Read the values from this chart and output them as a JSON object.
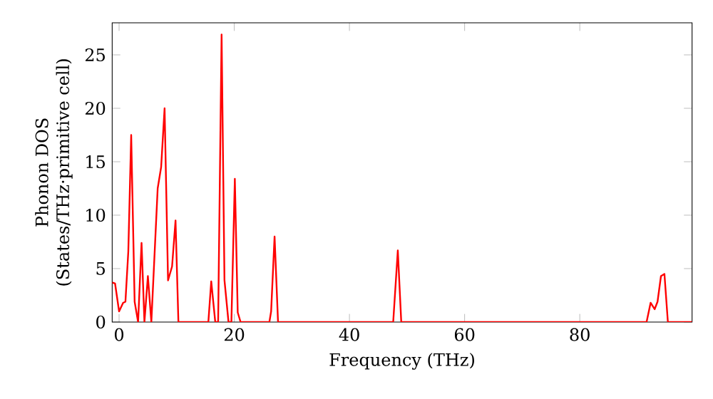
{
  "chart_data": {
    "type": "line",
    "xlabel": "Frequency (THz)",
    "ylabel": "Phonon DOS\n(States/THz·primitive cell)",
    "xlim": [
      -1.2,
      99.5
    ],
    "ylim": [
      0,
      28
    ],
    "xticks": [
      0,
      20,
      40,
      60,
      80
    ],
    "yticks": [
      0,
      5,
      10,
      15,
      20,
      25
    ],
    "grid": false,
    "line_style": "solid",
    "marker": "none",
    "series": [
      {
        "color": "#ff0000",
        "x": [
          -1.2,
          -0.7,
          0,
          0.7,
          1.1,
          1.6,
          2.1,
          2.7,
          3.3,
          3.9,
          4.4,
          5.0,
          5.6,
          6.7,
          7.3,
          7.9,
          8.5,
          9.2,
          9.8,
          10.3,
          15.5,
          16.0,
          16.7,
          17.2,
          17.8,
          18.3,
          19.0,
          19.5,
          20.1,
          20.6,
          21.1,
          26.1,
          26.4,
          27.0,
          27.6,
          47.6,
          48.4,
          49.0,
          91.6,
          92.3,
          93.0,
          93.5,
          94.1,
          94.7,
          95.3,
          99.5
        ],
        "values": [
          3.7,
          3.6,
          1.0,
          1.8,
          1.9,
          6.6,
          17.5,
          1.9,
          0,
          7.4,
          0,
          4.3,
          0,
          12.5,
          14.5,
          20,
          3.9,
          5.2,
          9.5,
          0,
          0,
          3.8,
          0,
          0,
          26.9,
          3.9,
          0,
          0,
          13.4,
          0.9,
          0,
          0,
          1.0,
          8.0,
          0,
          0,
          6.7,
          0,
          0,
          1.8,
          1.2,
          1.9,
          4.3,
          4.5,
          0,
          0
        ]
      }
    ]
  }
}
